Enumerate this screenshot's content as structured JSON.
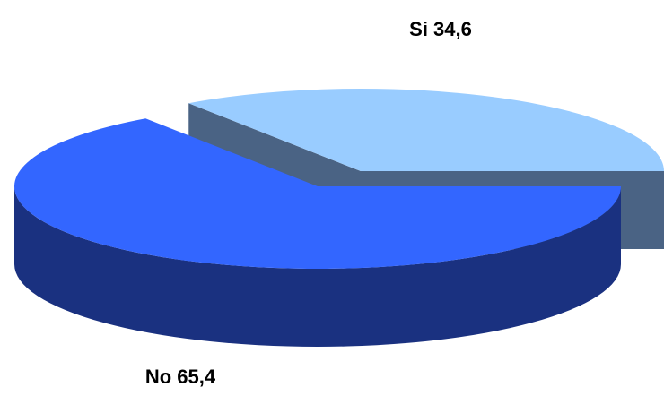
{
  "chart_data": {
    "type": "pie",
    "style": "3d-exploded",
    "title": "",
    "slices": [
      {
        "category": "Si",
        "value": 34.6,
        "label": "Si 34,6",
        "top_color": "#99ccff",
        "side_color": "#4a6384",
        "exploded": true
      },
      {
        "category": "No",
        "value": 65.4,
        "label": "No 65,4",
        "top_color": "#3366ff",
        "side_color": "#1a3180",
        "exploded": false
      }
    ],
    "legend": "none"
  }
}
